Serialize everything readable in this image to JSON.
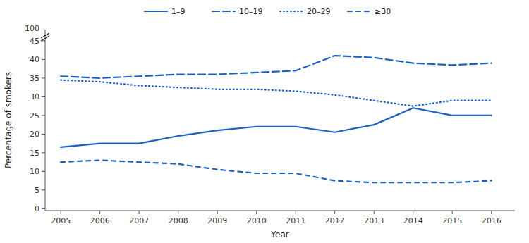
{
  "chart_data": {
    "type": "line",
    "x_label": "Year",
    "y_label": "Percentage of smokers",
    "x": [
      2005,
      2006,
      2007,
      2008,
      2009,
      2010,
      2011,
      2012,
      2013,
      2014,
      2015,
      2016
    ],
    "series": [
      {
        "name": "1–9",
        "color": "#2060c0",
        "line_style": "solid",
        "values": [
          16.5,
          17.5,
          17.5,
          19.5,
          21.0,
          22.0,
          22.0,
          20.5,
          22.5,
          27.0,
          25.0,
          25.0
        ]
      },
      {
        "name": "10–19",
        "color": "#2060c0",
        "line_style": "dashed",
        "values": [
          35.5,
          35.0,
          35.5,
          36.0,
          36.0,
          36.5,
          37.0,
          41.0,
          40.5,
          39.0,
          38.5,
          39.0
        ]
      },
      {
        "name": "20–29",
        "color": "#2060c0",
        "line_style": "dotted",
        "values": [
          34.5,
          34.0,
          33.0,
          32.5,
          32.0,
          32.0,
          31.5,
          30.5,
          29.0,
          27.5,
          29.0,
          29.0
        ]
      },
      {
        "name": "≥30",
        "color": "#2060c0",
        "line_style": "loosely-dashed",
        "values": [
          12.5,
          13.0,
          12.5,
          12.0,
          10.5,
          9.5,
          9.5,
          7.5,
          7.0,
          7.0,
          7.0,
          7.5
        ]
      }
    ],
    "xlim": [
      2004.6,
      2016.6
    ],
    "xticks": [
      2005,
      2006,
      2007,
      2008,
      2009,
      2010,
      2011,
      2012,
      2013,
      2014,
      2015,
      2016
    ],
    "ylim": [
      -0.5,
      48
    ],
    "yticks": [
      0,
      5,
      10,
      15,
      20,
      25,
      30,
      35,
      40,
      45
    ],
    "annotations": [
      {
        "text": "100"
      }
    ],
    "grid": false,
    "legend": "top"
  }
}
